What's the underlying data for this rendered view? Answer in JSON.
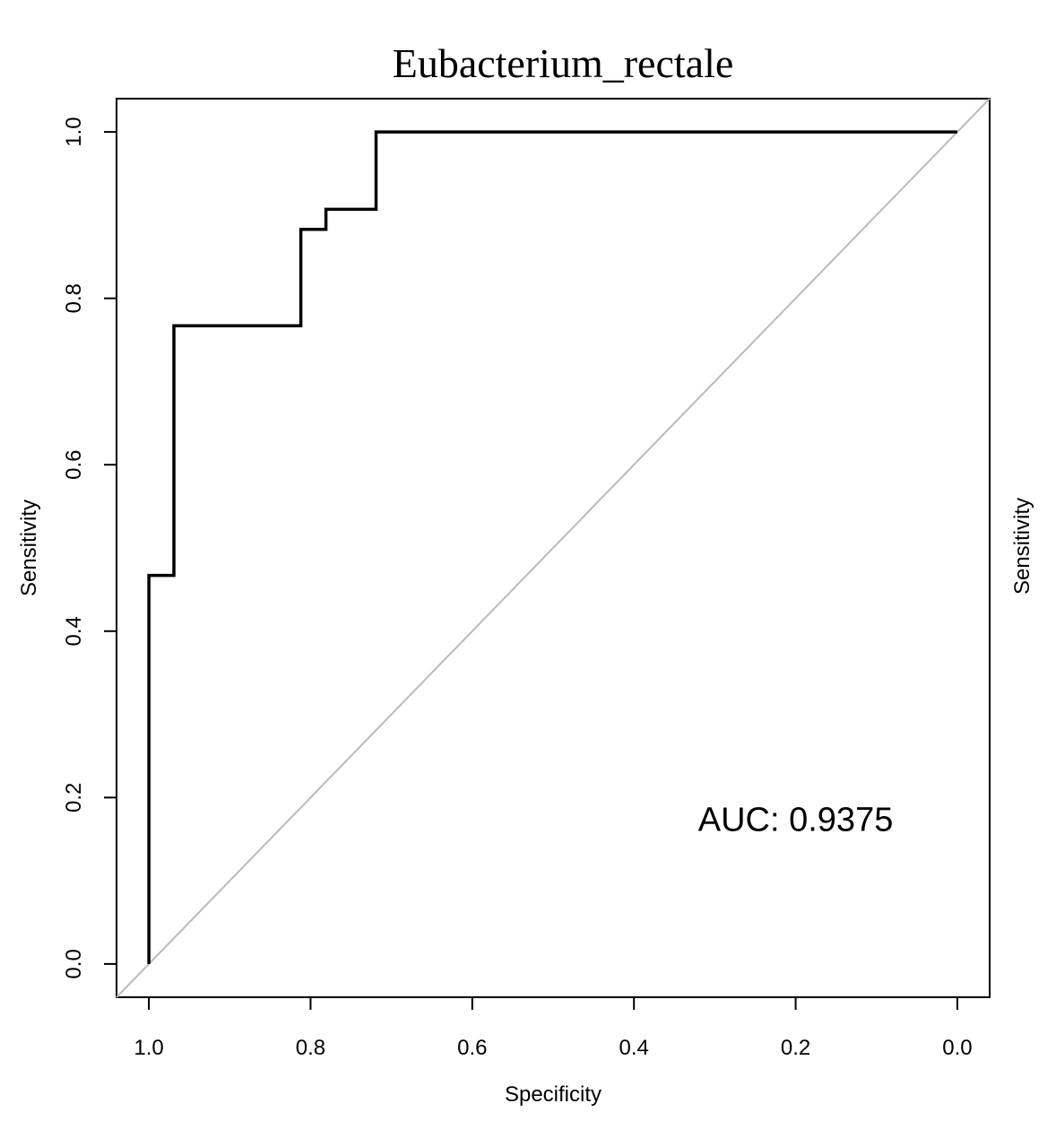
{
  "chart_data": {
    "type": "line",
    "title": "Eubacterium_rectale",
    "xlabel": "Specificity",
    "ylabel": "Sensitivity",
    "right_label": "Sensitivity",
    "xlim": [
      1.04,
      -0.04
    ],
    "ylim": [
      -0.04,
      1.04
    ],
    "x_reversed": true,
    "grid": false,
    "x_ticks": [
      1.0,
      0.8,
      0.6,
      0.4,
      0.2,
      0.0
    ],
    "x_tick_labels": [
      "1.0",
      "0.8",
      "0.6",
      "0.4",
      "0.2",
      "0.0"
    ],
    "y_ticks": [
      0.0,
      0.2,
      0.4,
      0.6,
      0.8,
      1.0
    ],
    "y_tick_labels": [
      "0.0",
      "0.2",
      "0.4",
      "0.6",
      "0.8",
      "1.0"
    ],
    "series": [
      {
        "color": "#000000",
        "points": [
          [
            1.0,
            0.0
          ],
          [
            1.0,
            0.467
          ],
          [
            0.969,
            0.467
          ],
          [
            0.969,
            0.767
          ],
          [
            0.812,
            0.767
          ],
          [
            0.812,
            0.883
          ],
          [
            0.781,
            0.883
          ],
          [
            0.781,
            0.907
          ],
          [
            0.719,
            0.907
          ],
          [
            0.719,
            1.0
          ],
          [
            0.0,
            1.0
          ]
        ]
      }
    ],
    "reference_line": {
      "color": "#bbbbbb",
      "points": [
        [
          1.04,
          -0.04
        ],
        [
          -0.04,
          1.04
        ]
      ]
    },
    "annotations": [
      {
        "text": "AUC: 0.9375",
        "x": 0.2,
        "y": 0.175
      }
    ]
  }
}
